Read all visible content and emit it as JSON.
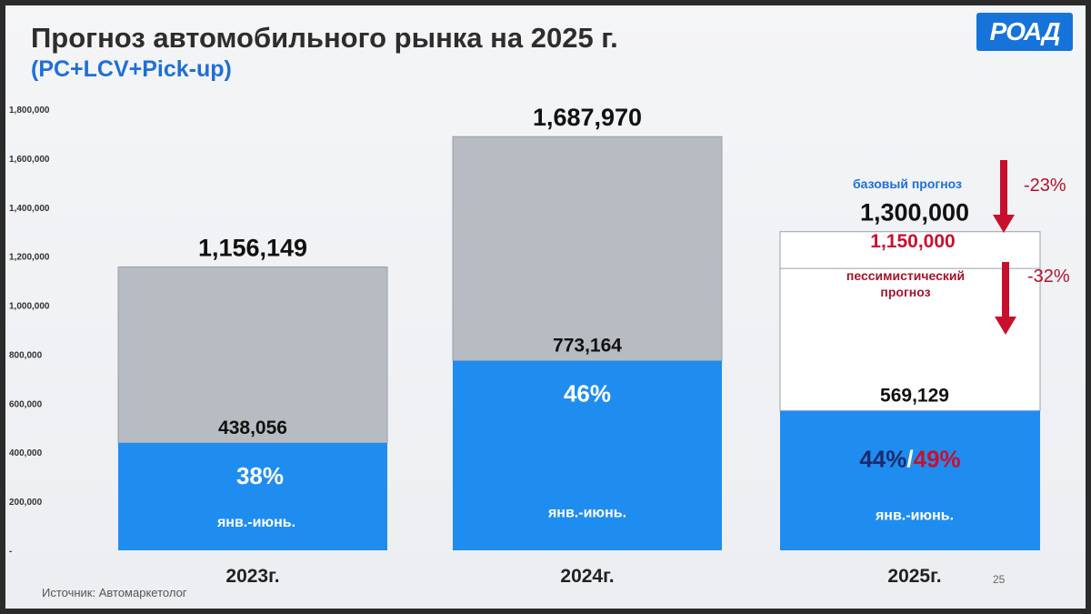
{
  "slide": {
    "title": "Прогноз автомобильного рынка на 2025 г.",
    "subtitle": "(PC+LCV+Pick-up)",
    "logo": "РОАД",
    "source": "Источник: Автомаркетолог",
    "page_number": "25"
  },
  "colors": {
    "full_year": "#b7bcc3",
    "first_half": "#1f8df0",
    "forecast_box": "#ffffff",
    "accent_red": "#c8102e",
    "accent_blue": "#1f6fd6"
  },
  "chart_data": {
    "type": "bar",
    "stacked": true,
    "categories": [
      "2023г.",
      "2024г.",
      "2025г."
    ],
    "ylim": [
      0,
      1800000
    ],
    "y_ticks": [
      "1,800,000",
      "1,600,000",
      "1,400,000",
      "1,200,000",
      "1,000,000",
      "800,000",
      "600,000",
      "400,000",
      "200,000",
      "-"
    ],
    "y_tick_values": [
      1800000,
      1600000,
      1400000,
      1200000,
      1000000,
      800000,
      600000,
      400000,
      200000,
      0
    ],
    "grid": false,
    "legend": "none",
    "full_year": {
      "values": [
        1156149,
        1687970,
        1300000
      ],
      "labels": [
        "1,156,149",
        "1,687,970",
        "1,300,000"
      ]
    },
    "first_half": {
      "values": [
        438056,
        773164,
        569129
      ],
      "labels": [
        "438,056",
        "773,164",
        "569,129"
      ],
      "share_labels": [
        "38%",
        "46%",
        ""
      ],
      "period_labels": [
        "янв.-июнь.",
        "янв.-июнь.",
        "янв.-июнь."
      ]
    },
    "forecast_2025": {
      "base_value": 1300000,
      "base_label": "1,300,000",
      "base_note": "базовый прогноз",
      "base_change": "-23%",
      "pessimistic_value": 1150000,
      "pessimistic_label": "1,150,000",
      "pessimistic_note_line1": "пессимистический",
      "pessimistic_note_line2": "прогноз",
      "pessimistic_change": "-32%",
      "share_base": "44%",
      "share_separator": "/",
      "share_pessimistic": "49%"
    }
  }
}
